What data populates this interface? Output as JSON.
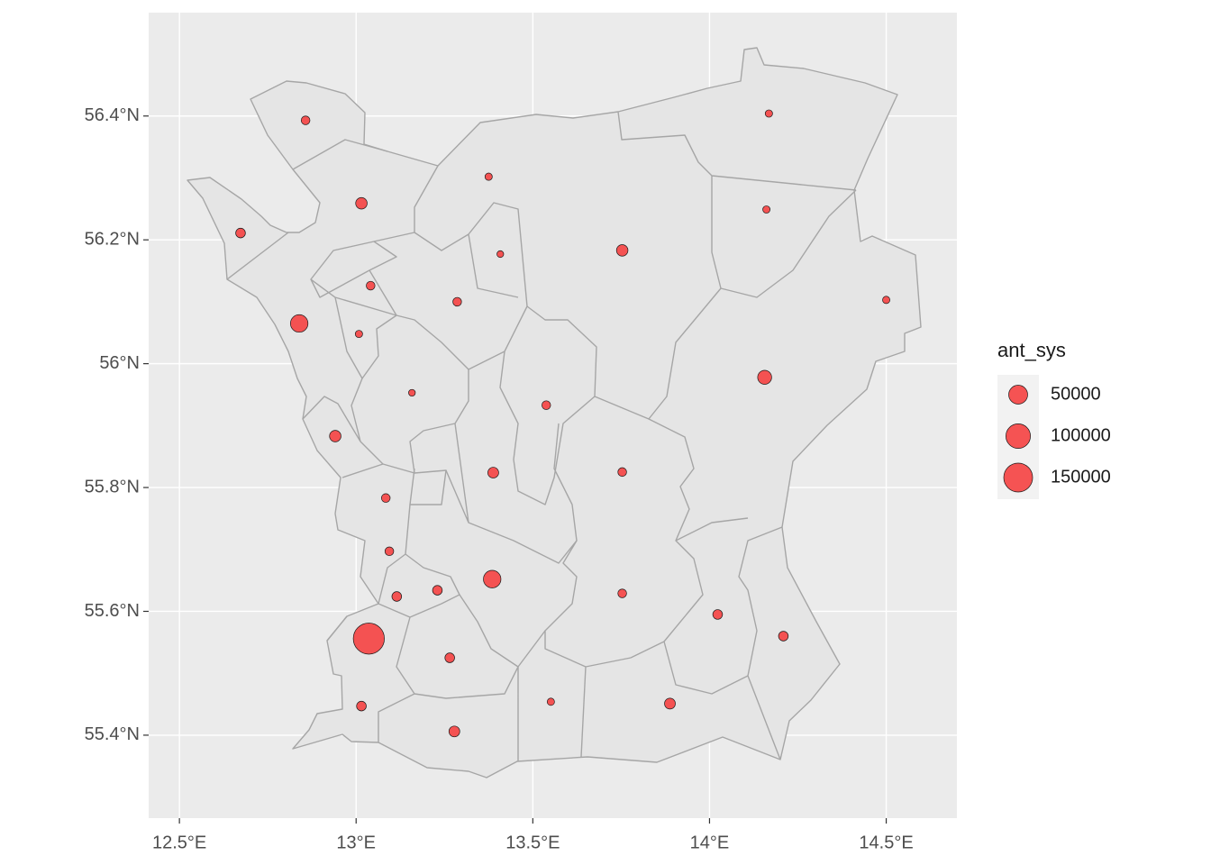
{
  "chart_data": {
    "type": "map",
    "color": "#f44a4a",
    "grid": true,
    "xlim": [
      12.413,
      14.7
    ],
    "ylim": [
      55.266,
      56.567
    ],
    "xticks": [
      {
        "value": 12.5,
        "label": "12.5°E"
      },
      {
        "value": 13,
        "label": "13°E"
      },
      {
        "value": 13.5,
        "label": "13.5°E"
      },
      {
        "value": 14,
        "label": "14°E"
      },
      {
        "value": 14.5,
        "label": "14.5°E"
      }
    ],
    "yticks": [
      {
        "value": 55.4,
        "label": "55.4°N"
      },
      {
        "value": 55.6,
        "label": "55.6°N"
      },
      {
        "value": 55.8,
        "label": "55.8°N"
      },
      {
        "value": 56,
        "label": "56°N"
      },
      {
        "value": 56.2,
        "label": "56.2°N"
      },
      {
        "value": 56.4,
        "label": "56.4°N"
      }
    ],
    "x": [
      12.857,
      14.168,
      13.375,
      13.015,
      14.161,
      12.673,
      13.753,
      13.408,
      13.041,
      13.286,
      14.5,
      12.839,
      13.008,
      14.156,
      13.158,
      13.538,
      12.941,
      13.388,
      13.753,
      13.084,
      13.094,
      13.385,
      13.23,
      13.115,
      13.753,
      14.023,
      14.209,
      13.036,
      13.265,
      13.015,
      13.551,
      13.888,
      13.278
    ],
    "y": [
      56.393,
      56.404,
      56.302,
      56.259,
      56.249,
      56.211,
      56.183,
      56.177,
      56.126,
      56.1,
      56.103,
      56.065,
      56.048,
      55.978,
      55.953,
      55.933,
      55.883,
      55.824,
      55.825,
      55.783,
      55.697,
      55.652,
      55.634,
      55.624,
      55.629,
      55.595,
      55.56,
      55.556,
      55.525,
      55.447,
      55.454,
      55.451,
      55.406
    ],
    "sizes": [
      3000,
      1000,
      1000,
      10000,
      1000,
      5000,
      10000,
      500,
      3000,
      3000,
      1000,
      40000,
      1000,
      20000,
      500,
      3000,
      10000,
      8000,
      3000,
      3000,
      3000,
      40000,
      5000,
      5000,
      3000,
      5000,
      5000,
      180000,
      5000,
      5000,
      1000,
      8000,
      8000
    ],
    "size_legend": {
      "title": "ant_sys",
      "values": [
        50000,
        100000,
        150000
      ]
    }
  }
}
